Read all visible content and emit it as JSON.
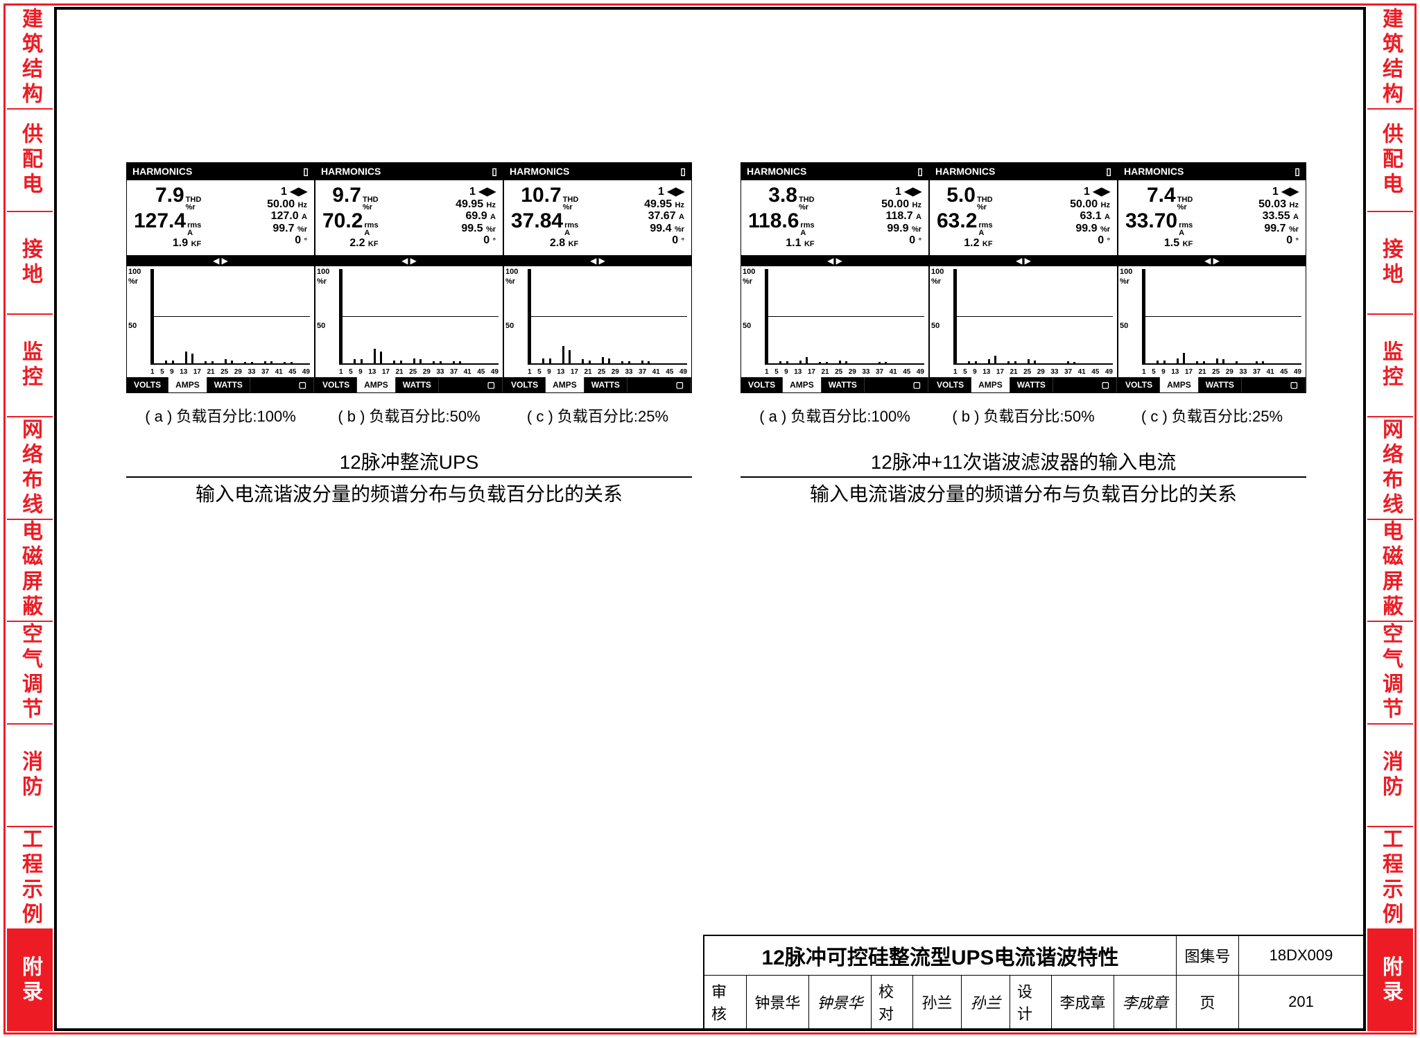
{
  "side_tabs": [
    "建筑结构",
    "供配电",
    "接地",
    "监控",
    "网络布线",
    "电磁屏蔽",
    "空气调节",
    "消防",
    "工程示例",
    "附录"
  ],
  "active_tab_index": 9,
  "analyzer_common": {
    "header": "HARMONICS",
    "y_labels": [
      "100",
      "%r",
      "50"
    ],
    "x_ticks": [
      "1",
      "5",
      "9",
      "13",
      "17",
      "21",
      "25",
      "29",
      "33",
      "37",
      "41",
      "45",
      "49"
    ],
    "footer": {
      "volts": "VOLTS",
      "amps": "AMPS",
      "watts": "WATTS"
    },
    "chart": {
      "ylim": [
        0,
        100
      ],
      "grid_at": 50,
      "bar_color": "#000",
      "bg": "#fff"
    }
  },
  "left_group": {
    "captions": [
      "( a ) 负载百分比:100%",
      "( b ) 负载百分比:50%",
      "( c ) 负载百分比:25%"
    ],
    "title_top": "12脉冲整流UPS",
    "title_bottom": "输入电流谐波分量的频谱分布与负载百分比的关系",
    "panels": [
      {
        "readout": {
          "thd": "7.9",
          "rms": "127.4",
          "kf": "1.9",
          "idx": "1",
          "hz": "50.00",
          "a": "127.0",
          "pct": "99.7",
          "deg": "0"
        },
        "bars": [
          [
            1,
            100
          ],
          [
            5,
            3
          ],
          [
            7,
            3
          ],
          [
            11,
            12
          ],
          [
            13,
            10
          ],
          [
            17,
            2
          ],
          [
            19,
            2
          ],
          [
            23,
            4
          ],
          [
            25,
            3
          ],
          [
            29,
            1
          ],
          [
            31,
            1
          ],
          [
            35,
            2
          ],
          [
            37,
            2
          ],
          [
            41,
            1
          ],
          [
            43,
            1
          ]
        ]
      },
      {
        "readout": {
          "thd": "9.7",
          "rms": "70.2",
          "kf": "2.2",
          "idx": "1",
          "hz": "49.95",
          "a": "69.9",
          "pct": "99.5",
          "deg": "0"
        },
        "bars": [
          [
            1,
            100
          ],
          [
            5,
            4
          ],
          [
            7,
            4
          ],
          [
            11,
            15
          ],
          [
            13,
            12
          ],
          [
            17,
            3
          ],
          [
            19,
            3
          ],
          [
            23,
            5
          ],
          [
            25,
            4
          ],
          [
            29,
            2
          ],
          [
            31,
            2
          ],
          [
            35,
            2
          ],
          [
            37,
            2
          ]
        ]
      },
      {
        "readout": {
          "thd": "10.7",
          "rms": "37.84",
          "kf": "2.8",
          "idx": "1",
          "hz": "49.95",
          "a": "37.67",
          "pct": "99.4",
          "deg": "0"
        },
        "bars": [
          [
            1,
            100
          ],
          [
            5,
            5
          ],
          [
            7,
            5
          ],
          [
            11,
            18
          ],
          [
            13,
            14
          ],
          [
            17,
            4
          ],
          [
            19,
            3
          ],
          [
            23,
            6
          ],
          [
            25,
            5
          ],
          [
            29,
            2
          ],
          [
            31,
            2
          ],
          [
            35,
            3
          ],
          [
            37,
            2
          ]
        ]
      }
    ]
  },
  "right_group": {
    "captions": [
      "( a ) 负载百分比:100%",
      "( b ) 负载百分比:50%",
      "( c ) 负载百分比:25%"
    ],
    "title_top": "12脉冲+11次谐波滤波器的输入电流",
    "title_bottom": "输入电流谐波分量的频谱分布与负载百分比的关系",
    "panels": [
      {
        "readout": {
          "thd": "3.8",
          "rms": "118.6",
          "kf": "1.1",
          "idx": "1",
          "hz": "50.00",
          "a": "118.7",
          "pct": "99.9",
          "deg": "0"
        },
        "bars": [
          [
            1,
            100
          ],
          [
            5,
            2
          ],
          [
            7,
            2
          ],
          [
            11,
            3
          ],
          [
            13,
            6
          ],
          [
            17,
            1
          ],
          [
            19,
            1
          ],
          [
            23,
            3
          ],
          [
            25,
            2
          ],
          [
            35,
            1
          ],
          [
            37,
            1
          ]
        ]
      },
      {
        "readout": {
          "thd": "5.0",
          "rms": "63.2",
          "kf": "1.2",
          "idx": "1",
          "hz": "50.00",
          "a": "63.1",
          "pct": "99.9",
          "deg": "0"
        },
        "bars": [
          [
            1,
            100
          ],
          [
            5,
            2
          ],
          [
            7,
            2
          ],
          [
            11,
            4
          ],
          [
            13,
            8
          ],
          [
            17,
            2
          ],
          [
            19,
            2
          ],
          [
            23,
            4
          ],
          [
            25,
            3
          ],
          [
            35,
            2
          ],
          [
            37,
            1
          ]
        ]
      },
      {
        "readout": {
          "thd": "7.4",
          "rms": "33.70",
          "kf": "1.5",
          "idx": "1",
          "hz": "50.03",
          "a": "33.55",
          "pct": "99.7",
          "deg": "0"
        },
        "bars": [
          [
            1,
            100
          ],
          [
            5,
            3
          ],
          [
            7,
            3
          ],
          [
            11,
            5
          ],
          [
            13,
            11
          ],
          [
            17,
            2
          ],
          [
            19,
            2
          ],
          [
            23,
            5
          ],
          [
            25,
            4
          ],
          [
            29,
            2
          ],
          [
            35,
            2
          ],
          [
            37,
            2
          ]
        ]
      }
    ]
  },
  "title_block": {
    "main": "12脉冲可控硅整流型UPS电流谐波特性",
    "set_label": "图集号",
    "set_no": "18DX009",
    "page_label": "页",
    "page_no": "201",
    "review_l": "审核",
    "review_n": "钟景华",
    "review_s": "钟景华",
    "check_l": "校对",
    "check_n": "孙兰",
    "check_s": "孙兰",
    "design_l": "设计",
    "design_n": "李成章",
    "design_s": "李成章"
  }
}
